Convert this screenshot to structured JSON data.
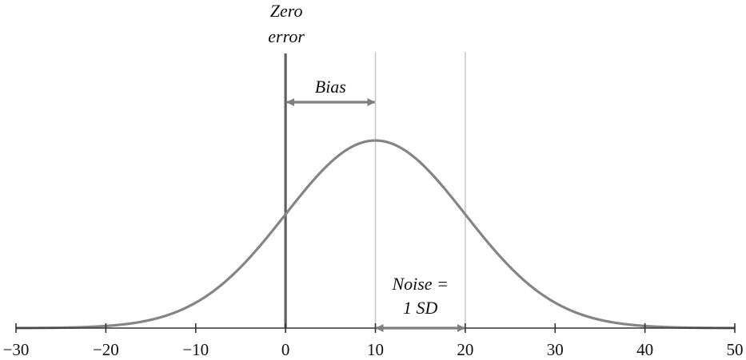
{
  "chart_data": {
    "type": "line",
    "title": "",
    "xlabel": "",
    "ylabel": "",
    "xlim": [
      -30,
      50
    ],
    "xticks": [
      -30,
      -20,
      -10,
      0,
      10,
      20,
      30,
      40,
      50
    ],
    "xtick_labels": [
      "−30",
      "−20",
      "−10",
      "0",
      "10",
      "20",
      "30",
      "40",
      "50"
    ],
    "grid": false,
    "series": [
      {
        "distribution": "normal",
        "mean": 10,
        "sd": 10,
        "color": "#858585"
      }
    ],
    "reference_lines": [
      {
        "x": 0,
        "color": "#5f5f5f"
      },
      {
        "x": 10,
        "color": "#c8c8c8"
      },
      {
        "x": 20,
        "color": "#c8c8c8"
      }
    ],
    "annotations": {
      "zero_error": [
        "Zero",
        "error"
      ],
      "bias": "Bias",
      "noise": [
        "Noise =",
        "1 SD"
      ],
      "bias_range": [
        0,
        10
      ],
      "noise_range": [
        10,
        20
      ],
      "arrow_color": "#7f7f7f"
    }
  }
}
